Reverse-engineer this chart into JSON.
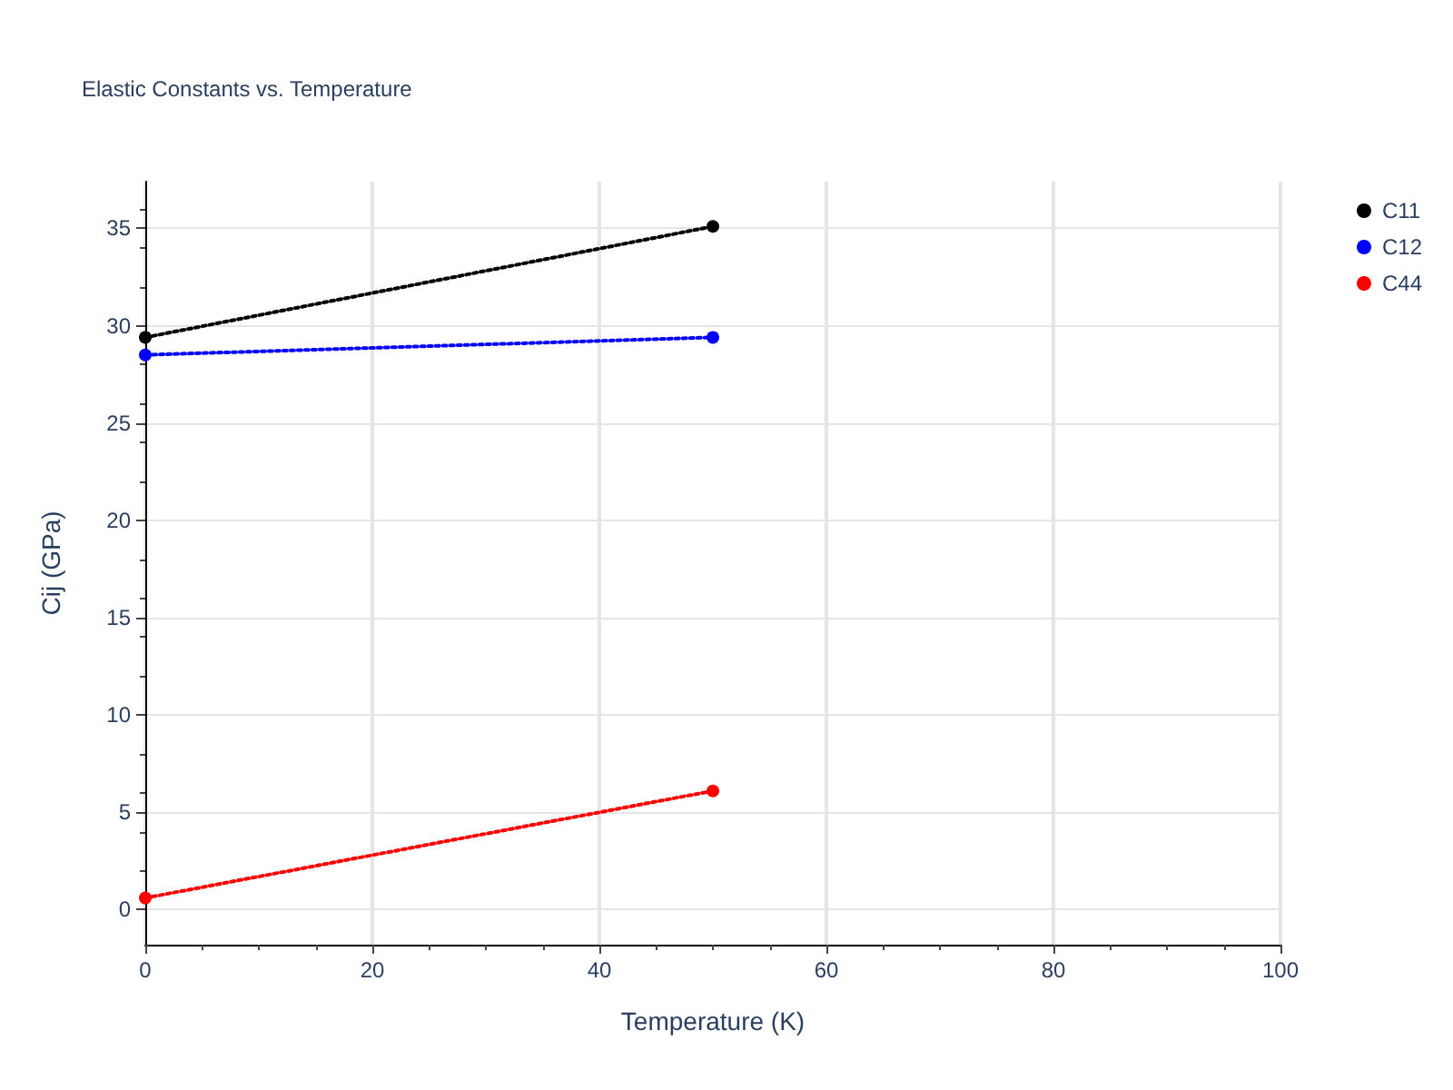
{
  "chart_data": {
    "type": "line",
    "title": "Elastic Constants vs. Temperature",
    "xlabel": "Temperature (K)",
    "ylabel": "Cij (GPa)",
    "x": [
      0,
      50
    ],
    "series": [
      {
        "name": "C11",
        "color": "#000000",
        "values": [
          29.4,
          35.1
        ]
      },
      {
        "name": "C12",
        "color": "#0000ff",
        "values": [
          28.5,
          29.4
        ]
      },
      {
        "name": "C44",
        "color": "#ff0000",
        "values": [
          0.6,
          6.1
        ]
      }
    ],
    "xlim": [
      0,
      100
    ],
    "xticks": [
      0,
      20,
      40,
      60,
      80,
      100
    ],
    "ylim": [
      -1.8,
      37.4
    ],
    "yticks": [
      0,
      5,
      10,
      15,
      20,
      25,
      30,
      35
    ],
    "grid": true,
    "legend": "top right",
    "marker": "circle",
    "line_style": "dotted"
  }
}
